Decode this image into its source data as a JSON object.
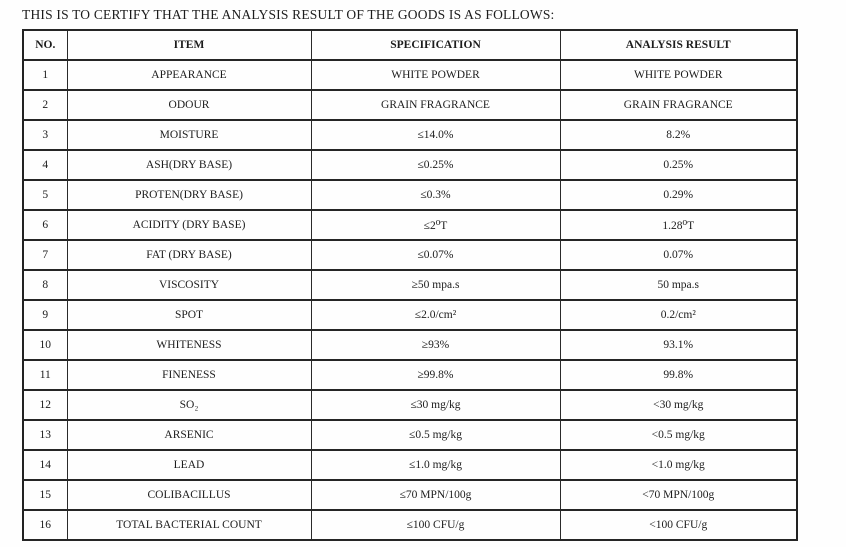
{
  "page": {
    "title": "THIS IS TO CERTIFY THAT THE ANALYSIS RESULT OF THE GOODS IS AS FOLLOWS:"
  },
  "table": {
    "columns": [
      "NO.",
      "ITEM",
      "SPECIFICATION",
      "ANALYSIS RESULT"
    ],
    "rows": [
      {
        "no": "1",
        "item": "APPEARANCE",
        "spec": "WHITE POWDER",
        "result": "WHITE POWDER"
      },
      {
        "no": "2",
        "item": "ODOUR",
        "spec": "GRAIN FRAGRANCE",
        "result": "GRAIN FRAGRANCE"
      },
      {
        "no": "3",
        "item": "MOISTURE",
        "spec": "≤14.0%",
        "result": "8.2%"
      },
      {
        "no": "4",
        "item": "ASH(DRY BASE)",
        "spec": "≤0.25%",
        "result": "0.25%"
      },
      {
        "no": "5",
        "item": "PROTEN(DRY BASE)",
        "spec": "≤0.3%",
        "result": "0.29%"
      },
      {
        "no": "6",
        "item": "ACIDITY (DRY BASE)",
        "spec": "≤2⁰T",
        "result": "1.28⁰T"
      },
      {
        "no": "7",
        "item": "FAT (DRY BASE)",
        "spec": "≤0.07%",
        "result": "0.07%"
      },
      {
        "no": "8",
        "item": "VISCOSITY",
        "spec": "≥50 mpa.s",
        "result": "50 mpa.s"
      },
      {
        "no": "9",
        "item": "SPOT",
        "spec": "≤2.0/cm²",
        "result": "0.2/cm²"
      },
      {
        "no": "10",
        "item": "WHITENESS",
        "spec": "≥93%",
        "result": "93.1%"
      },
      {
        "no": "11",
        "item": "FINENESS",
        "spec": "≥99.8%",
        "result": "99.8%"
      },
      {
        "no": "12",
        "item": "SO₂",
        "spec": "≤30 mg/kg",
        "result": "<30 mg/kg"
      },
      {
        "no": "13",
        "item": "ARSENIC",
        "spec": "≤0.5 mg/kg",
        "result": "<0.5 mg/kg"
      },
      {
        "no": "14",
        "item": "LEAD",
        "spec": "≤1.0 mg/kg",
        "result": "<1.0 mg/kg"
      },
      {
        "no": "15",
        "item": "COLIBACILLUS",
        "spec": "≤70 MPN/100g",
        "result": "<70 MPN/100g"
      },
      {
        "no": "16",
        "item": "TOTAL BACTERIAL COUNT",
        "spec": "≤100 CFU/g",
        "result": "<100 CFU/g"
      }
    ]
  }
}
